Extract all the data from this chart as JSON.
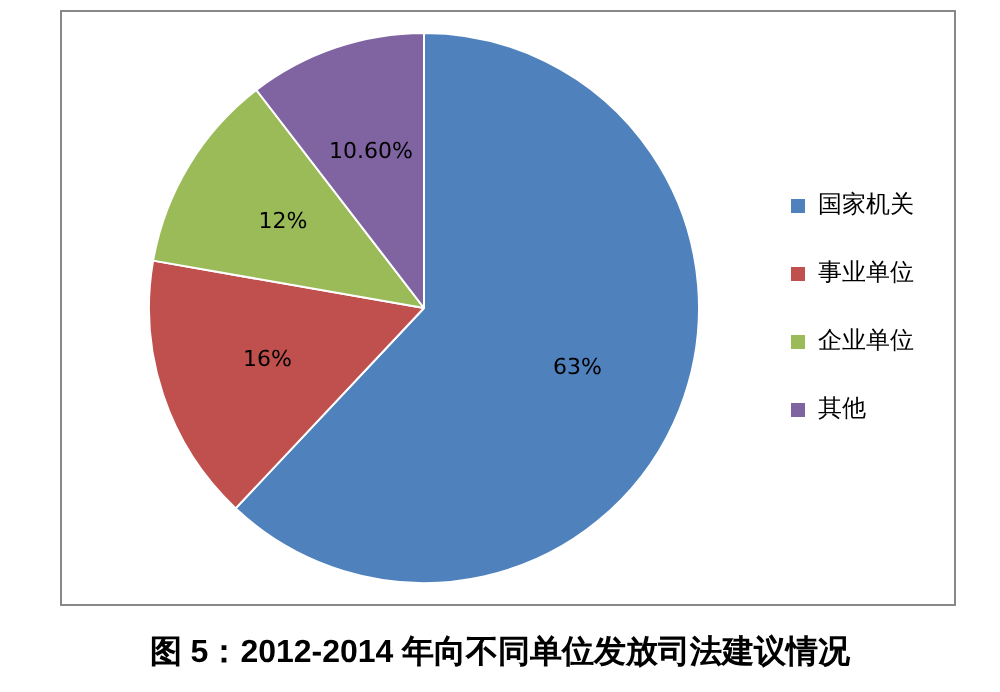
{
  "chart_data": {
    "type": "pie",
    "title": "图 5：2012-2014 年向不同单位发放司法建议情况",
    "categories": [
      "国家机关",
      "事业单位",
      "企业单位",
      "其他"
    ],
    "values": [
      63,
      16,
      12,
      10.6
    ],
    "colors": [
      "#4f81bd",
      "#c0504d",
      "#9bbb59",
      "#8064a2"
    ],
    "value_labels": [
      "63%",
      "16%",
      "12%",
      "10.60%"
    ],
    "legend": "right"
  }
}
